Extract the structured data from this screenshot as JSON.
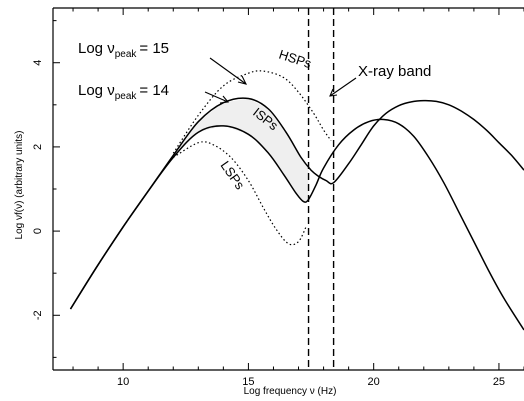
{
  "chart_data": {
    "type": "line",
    "title": "",
    "xlabel": "Log frequency ν (Hz)",
    "ylabel": "Log νf(ν) (arbitrary units)",
    "xlim": [
      7.2,
      26
    ],
    "ylim": [
      -3.3,
      5.3
    ],
    "x_ticks": [
      10,
      15,
      20,
      25
    ],
    "y_ticks": [
      -2,
      0,
      2,
      4
    ],
    "x_tick_labels": [
      "10",
      "15",
      "20",
      "25"
    ],
    "y_tick_labels": [
      "-2",
      "0",
      "2",
      "4"
    ],
    "xray_band": [
      17.4,
      18.4
    ],
    "series": [
      {
        "line": "solid",
        "x": [
          7.9,
          9.0,
          10.0,
          11.0,
          12.0,
          13.0,
          14.0,
          15.0,
          15.8,
          16.5,
          17.1,
          17.5,
          17.8,
          18.1,
          18.4,
          19.0,
          19.5,
          20.0,
          20.5,
          21.0,
          21.5,
          22.0,
          22.5,
          23.0,
          23.5,
          24.0,
          24.5,
          25.0,
          25.5,
          26.0
        ],
        "y": [
          -1.85,
          -0.8,
          0.1,
          0.95,
          1.8,
          2.6,
          3.05,
          3.15,
          2.9,
          2.35,
          1.75,
          1.45,
          1.3,
          1.2,
          1.15,
          1.6,
          2.05,
          2.5,
          2.8,
          2.98,
          3.07,
          3.1,
          3.08,
          3.0,
          2.85,
          2.65,
          2.4,
          2.1,
          1.8,
          1.45
        ]
      },
      {
        "line": "solid",
        "x": [
          7.9,
          9.0,
          10.0,
          11.0,
          12.0,
          13.0,
          14.0,
          15.0,
          15.8,
          16.4,
          16.9,
          17.2,
          17.4,
          17.7,
          18.0,
          18.6,
          19.2,
          19.8,
          20.4,
          21.0,
          21.6,
          22.2,
          22.8,
          23.4,
          24.0,
          24.6,
          25.2,
          26.0
        ],
        "y": [
          -1.85,
          -0.8,
          0.1,
          0.95,
          1.75,
          2.35,
          2.5,
          2.3,
          1.85,
          1.35,
          0.9,
          0.7,
          0.75,
          1.1,
          1.5,
          2.05,
          2.4,
          2.6,
          2.65,
          2.55,
          2.25,
          1.75,
          1.15,
          0.45,
          -0.25,
          -0.95,
          -1.6,
          -2.35
        ]
      },
      {
        "line": "dotted",
        "x": [
          12.0,
          13.0,
          14.0,
          15.0,
          15.6,
          16.4,
          17.0,
          17.6,
          18.0,
          18.3
        ],
        "y": [
          1.85,
          2.75,
          3.45,
          3.75,
          3.8,
          3.65,
          3.3,
          2.8,
          2.4,
          2.15
        ]
      },
      {
        "line": "dotted",
        "x": [
          12.0,
          13.0,
          13.6,
          14.3,
          15.0,
          15.6,
          16.1,
          16.6,
          17.0,
          17.3
        ],
        "y": [
          1.75,
          2.1,
          2.05,
          1.75,
          1.2,
          0.55,
          0.05,
          -0.3,
          -0.25,
          0.1
        ]
      }
    ],
    "annotations": {
      "peak15": "Log ν",
      "peak15_sub": "peak",
      "peak15_val": "= 15",
      "peak14": "Log ν",
      "peak14_sub": "peak",
      "peak14_val": "= 14",
      "hsps": "HSPs",
      "isps": "ISPs",
      "lsps": "LSPs",
      "xray": "X-ray band"
    }
  }
}
